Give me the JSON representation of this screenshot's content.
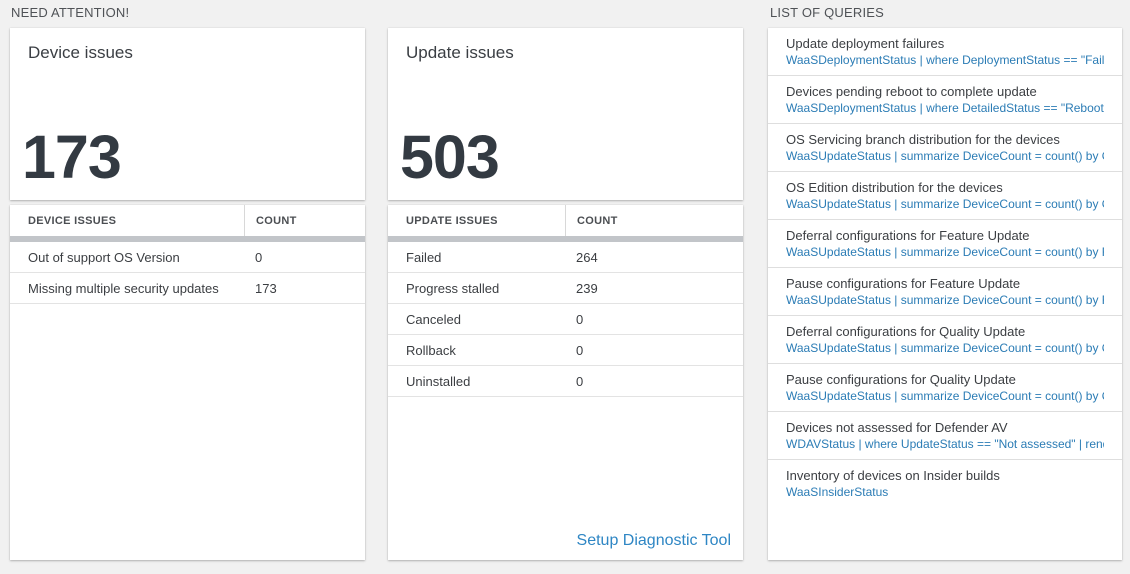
{
  "need_attention": {
    "header": "NEED ATTENTION!",
    "device_tile": {
      "title": "Device issues",
      "count": "173",
      "table": {
        "columns": [
          "DEVICE ISSUES",
          "COUNT"
        ],
        "rows": [
          {
            "label": "Out of support OS Version",
            "count": "0"
          },
          {
            "label": "Missing multiple security updates",
            "count": "173"
          }
        ]
      }
    },
    "update_tile": {
      "title": "Update issues",
      "count": "503",
      "table": {
        "columns": [
          "UPDATE ISSUES",
          "COUNT"
        ],
        "rows": [
          {
            "label": "Failed",
            "count": "264"
          },
          {
            "label": "Progress stalled",
            "count": "239"
          },
          {
            "label": "Canceled",
            "count": "0"
          },
          {
            "label": "Rollback",
            "count": "0"
          },
          {
            "label": "Uninstalled",
            "count": "0"
          }
        ]
      },
      "footer_link": "Setup Diagnostic Tool"
    }
  },
  "queries_panel": {
    "header": "LIST OF QUERIES",
    "items": [
      {
        "title": "Update deployment failures",
        "query": "WaaSDeploymentStatus | where DeploymentStatus == \"Failed\" |..."
      },
      {
        "title": "Devices pending reboot to complete update",
        "query": "WaaSDeploymentStatus | where DetailedStatus == \"Reboot pend..."
      },
      {
        "title": "OS Servicing branch distribution for the devices",
        "query": "WaaSUpdateStatus | summarize DeviceCount = count() by OSSer..."
      },
      {
        "title": "OS Edition distribution for the devices",
        "query": "WaaSUpdateStatus | summarize DeviceCount = count() by OSEdit..."
      },
      {
        "title": "Deferral configurations for Feature Update",
        "query": "WaaSUpdateStatus | summarize DeviceCount = count() by Featur..."
      },
      {
        "title": "Pause configurations for Feature Update",
        "query": "WaaSUpdateStatus | summarize DeviceCount = count() by Featur..."
      },
      {
        "title": "Deferral configurations for Quality Update",
        "query": "WaaSUpdateStatus | summarize DeviceCount = count() by Qualit..."
      },
      {
        "title": "Pause configurations for Quality Update",
        "query": "WaaSUpdateStatus | summarize DeviceCount = count() by Qualit..."
      },
      {
        "title": "Devices not assessed for Defender AV",
        "query": "WDAVStatus | where UpdateStatus == \"Not assessed\" | render ta..."
      },
      {
        "title": "Inventory of devices on Insider builds",
        "query": "WaaSInsiderStatus"
      }
    ]
  },
  "colors": {
    "page_background": "#f1f1f1",
    "card_background": "#ffffff",
    "big_number": "#333a42",
    "query_link_blue": "#2b7cb5",
    "setup_link_blue": "#2e86c4",
    "thick_divider_gray": "#c2c5c9"
  }
}
